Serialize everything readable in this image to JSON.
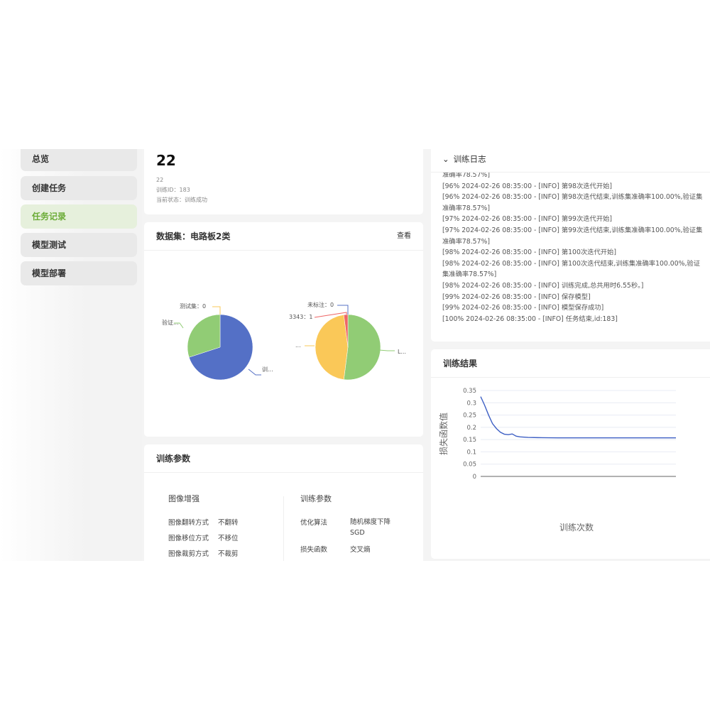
{
  "sidebar": {
    "items": [
      {
        "label": "总览"
      },
      {
        "label": "创建任务"
      },
      {
        "label": "任务记录",
        "active": true
      },
      {
        "label": "模型测试"
      },
      {
        "label": "模型部署"
      }
    ]
  },
  "task": {
    "title": "22",
    "name": "22",
    "train_id": "训练ID：183",
    "status": "当前状态：训练成功"
  },
  "dataset": {
    "title": "数据集：电路板2类",
    "view": "查看"
  },
  "pies": [
    {
      "slices": [
        {
          "label": "训...",
          "value": 70,
          "color": "#5470c6"
        },
        {
          "label": "验证...",
          "value": 30,
          "color": "#91cc75"
        },
        {
          "label": "测试集：0",
          "value": 0,
          "color": "#fac858"
        }
      ]
    },
    {
      "slices": [
        {
          "label": "L...",
          "value": 26,
          "color": "#91cc75"
        },
        {
          "label": "...",
          "value": 23,
          "color": "#fac858"
        },
        {
          "label": "3343：1",
          "value": 1,
          "color": "#ee6666"
        },
        {
          "label": "未标注：0",
          "value": 0,
          "color": "#5470c6"
        }
      ]
    }
  ],
  "params": {
    "title": "训练参数",
    "aug_title": "图像增强",
    "aug": [
      {
        "k": "图像翻转方式",
        "v": "不翻转"
      },
      {
        "k": "图像移位方式",
        "v": "不移位"
      },
      {
        "k": "图像裁剪方式",
        "v": "不裁剪"
      }
    ],
    "train_title": "训练参数",
    "train": [
      {
        "k": "优化算法",
        "v": "随机梯度下降SGD"
      },
      {
        "k": "损失函数",
        "v": "交叉熵"
      }
    ]
  },
  "log": {
    "title": "训练日志",
    "lines": [
      "准确率78.57%]",
      "[96% 2024-02-26 08:35:00 - [INFO] 第98次迭代开始]",
      "[96% 2024-02-26 08:35:00 - [INFO] 第98次迭代结束,训练集准确率100.00%,验证集",
      "准确率78.57%]",
      "[97% 2024-02-26 08:35:00 - [INFO] 第99次迭代开始]",
      "[97% 2024-02-26 08:35:00 - [INFO] 第99次迭代结束,训练集准确率100.00%,验证集",
      "准确率78.57%]",
      "[98% 2024-02-26 08:35:00 - [INFO] 第100次迭代开始]",
      "[98% 2024-02-26 08:35:00 - [INFO] 第100次迭代结束,训练集准确率100.00%,验证",
      "集准确率78.57%]",
      "[98% 2024-02-26 08:35:00 - [INFO] 训练完成,总共用时6.55秒。]",
      "[99% 2024-02-26 08:35:00 - [INFO] 保存模型]",
      "[99% 2024-02-26 08:35:00 - [INFO] 模型保存成功]",
      "[100% 2024-02-26 08:35:00 - [INFO] 任务结束,id:183]"
    ]
  },
  "results": {
    "title": "训练结果"
  },
  "chart_data": {
    "type": "line",
    "xlabel": "训练次数",
    "ylabel": "损失函数值",
    "ylim": [
      0,
      0.35
    ],
    "yticks": [
      "0",
      "0.05",
      "0.1",
      "0.15",
      "0.2",
      "0.25",
      "0.3",
      "0.35"
    ],
    "grid": true,
    "color": "#3d5fc4",
    "x": [
      1,
      3,
      5,
      7,
      9,
      11,
      13,
      15,
      17,
      19,
      21,
      25,
      30,
      40,
      50,
      60,
      70,
      80,
      90,
      100
    ],
    "y": [
      0.325,
      0.29,
      0.25,
      0.215,
      0.195,
      0.18,
      0.172,
      0.17,
      0.173,
      0.164,
      0.161,
      0.159,
      0.158,
      0.157,
      0.157,
      0.157,
      0.157,
      0.157,
      0.157,
      0.157
    ]
  }
}
